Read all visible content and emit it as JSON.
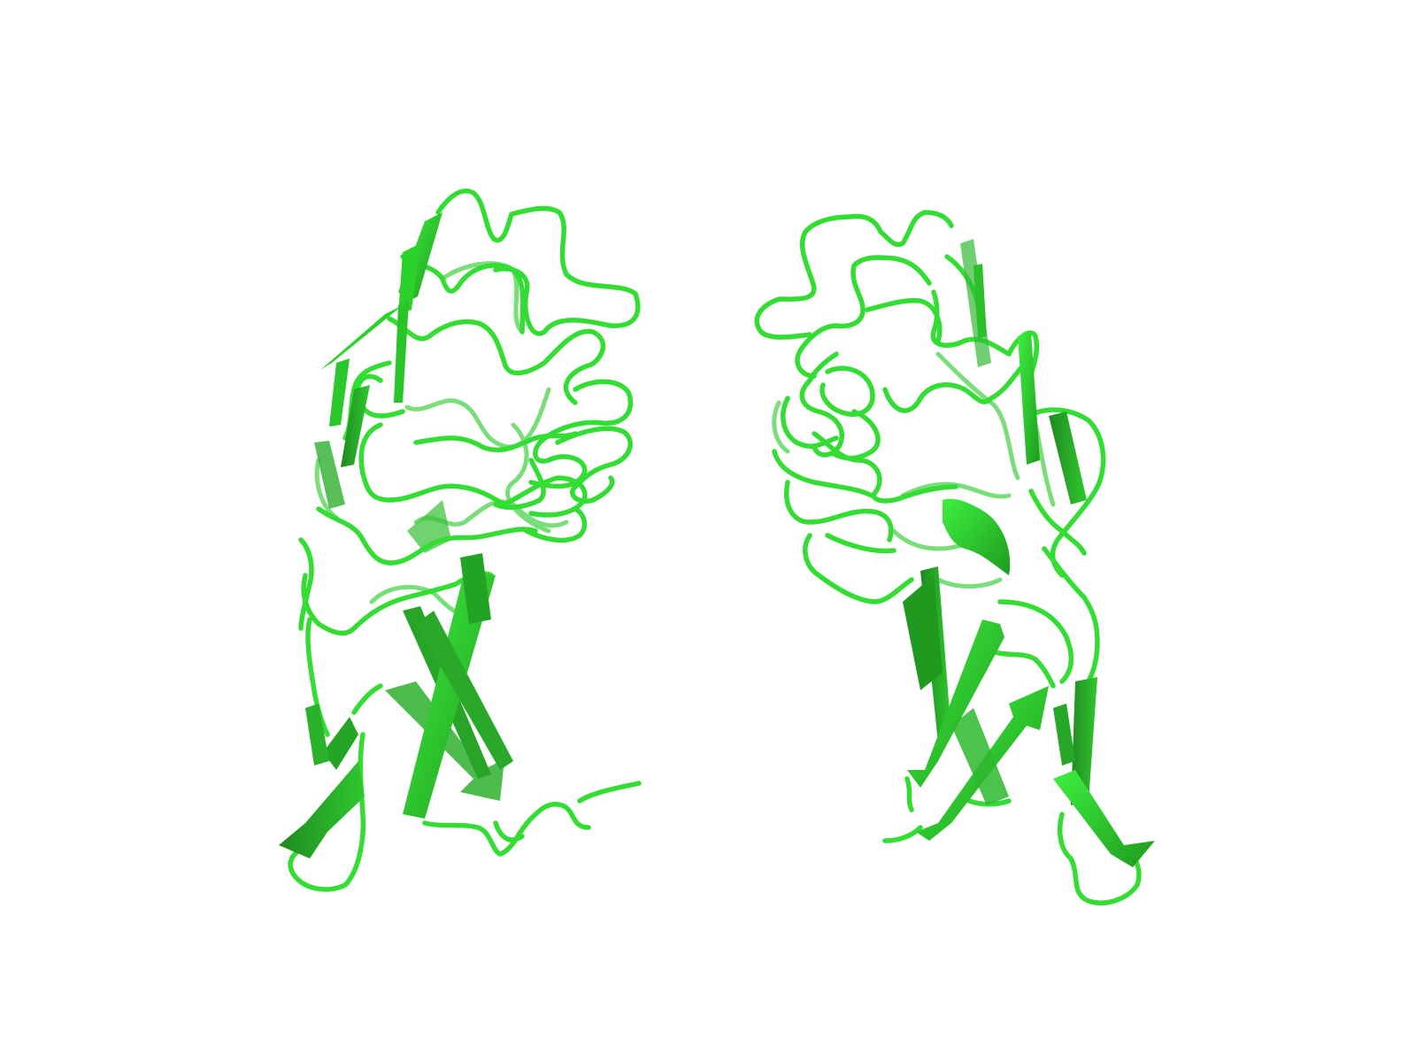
{
  "scene": {
    "background_color": "#ffffff",
    "colors": {
      "ribbon": "#33dd33",
      "ribbon_light": "#44ee44",
      "ribbon_dark": "#1f8f1f",
      "ribbon_shadow": "#187a18"
    },
    "molecules": [
      {
        "name": "protein-chain-left",
        "representation": "cartoon"
      },
      {
        "name": "protein-chain-right",
        "representation": "cartoon"
      }
    ]
  }
}
